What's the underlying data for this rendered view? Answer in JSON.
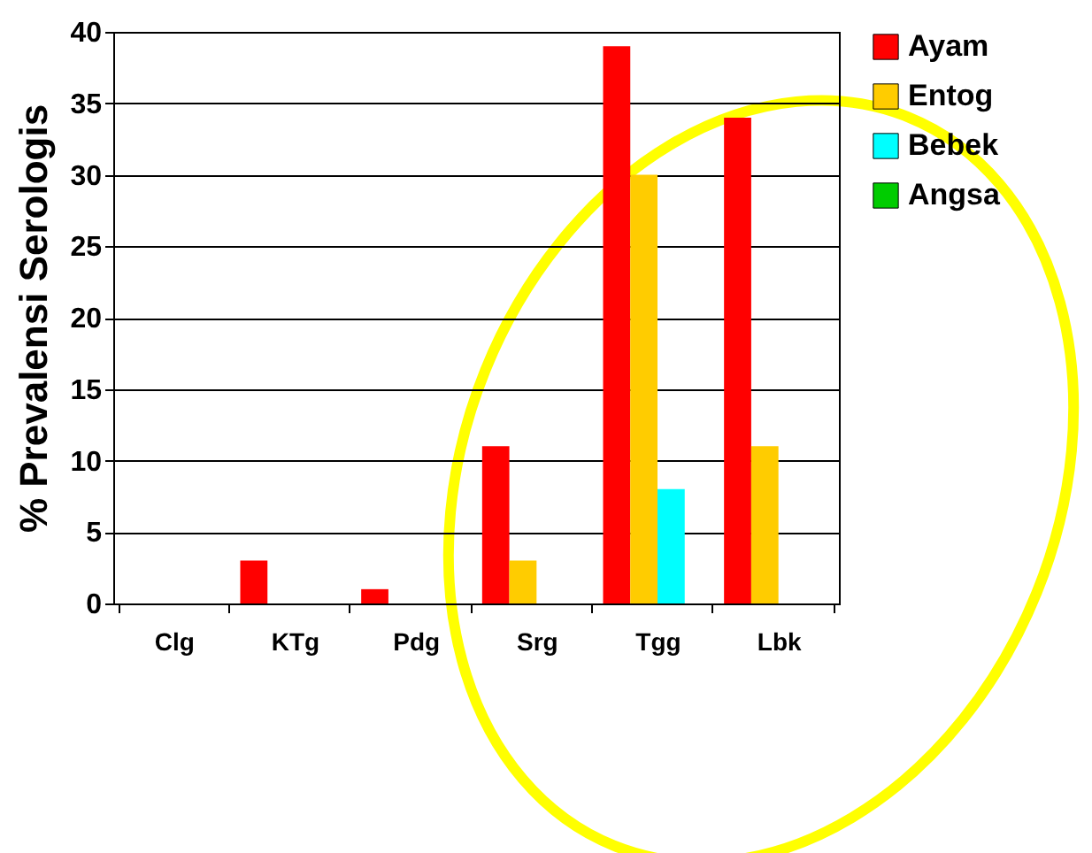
{
  "chart_data": {
    "type": "bar",
    "ylabel": "% Prevalensi Serologis",
    "categories": [
      "Clg",
      "KTg",
      "Pdg",
      "Srg",
      "Tgg",
      "Lbk"
    ],
    "series": [
      {
        "name": "Ayam",
        "color": "#ff0000",
        "values": [
          0,
          3,
          1,
          11,
          39,
          34
        ]
      },
      {
        "name": "Entog",
        "color": "#ffcc00",
        "values": [
          0,
          0,
          0,
          3,
          30,
          11
        ]
      },
      {
        "name": "Bebek",
        "color": "#00ffff",
        "values": [
          0,
          0,
          0,
          0,
          8,
          null
        ]
      },
      {
        "name": "Angsa",
        "color": "#00cc00",
        "values": [
          null,
          null,
          null,
          0,
          0,
          0
        ]
      }
    ],
    "ylim": [
      0,
      40
    ],
    "yticks": [
      0,
      5,
      10,
      15,
      20,
      25,
      30,
      35,
      40
    ],
    "grid": "y",
    "legend": "right"
  }
}
